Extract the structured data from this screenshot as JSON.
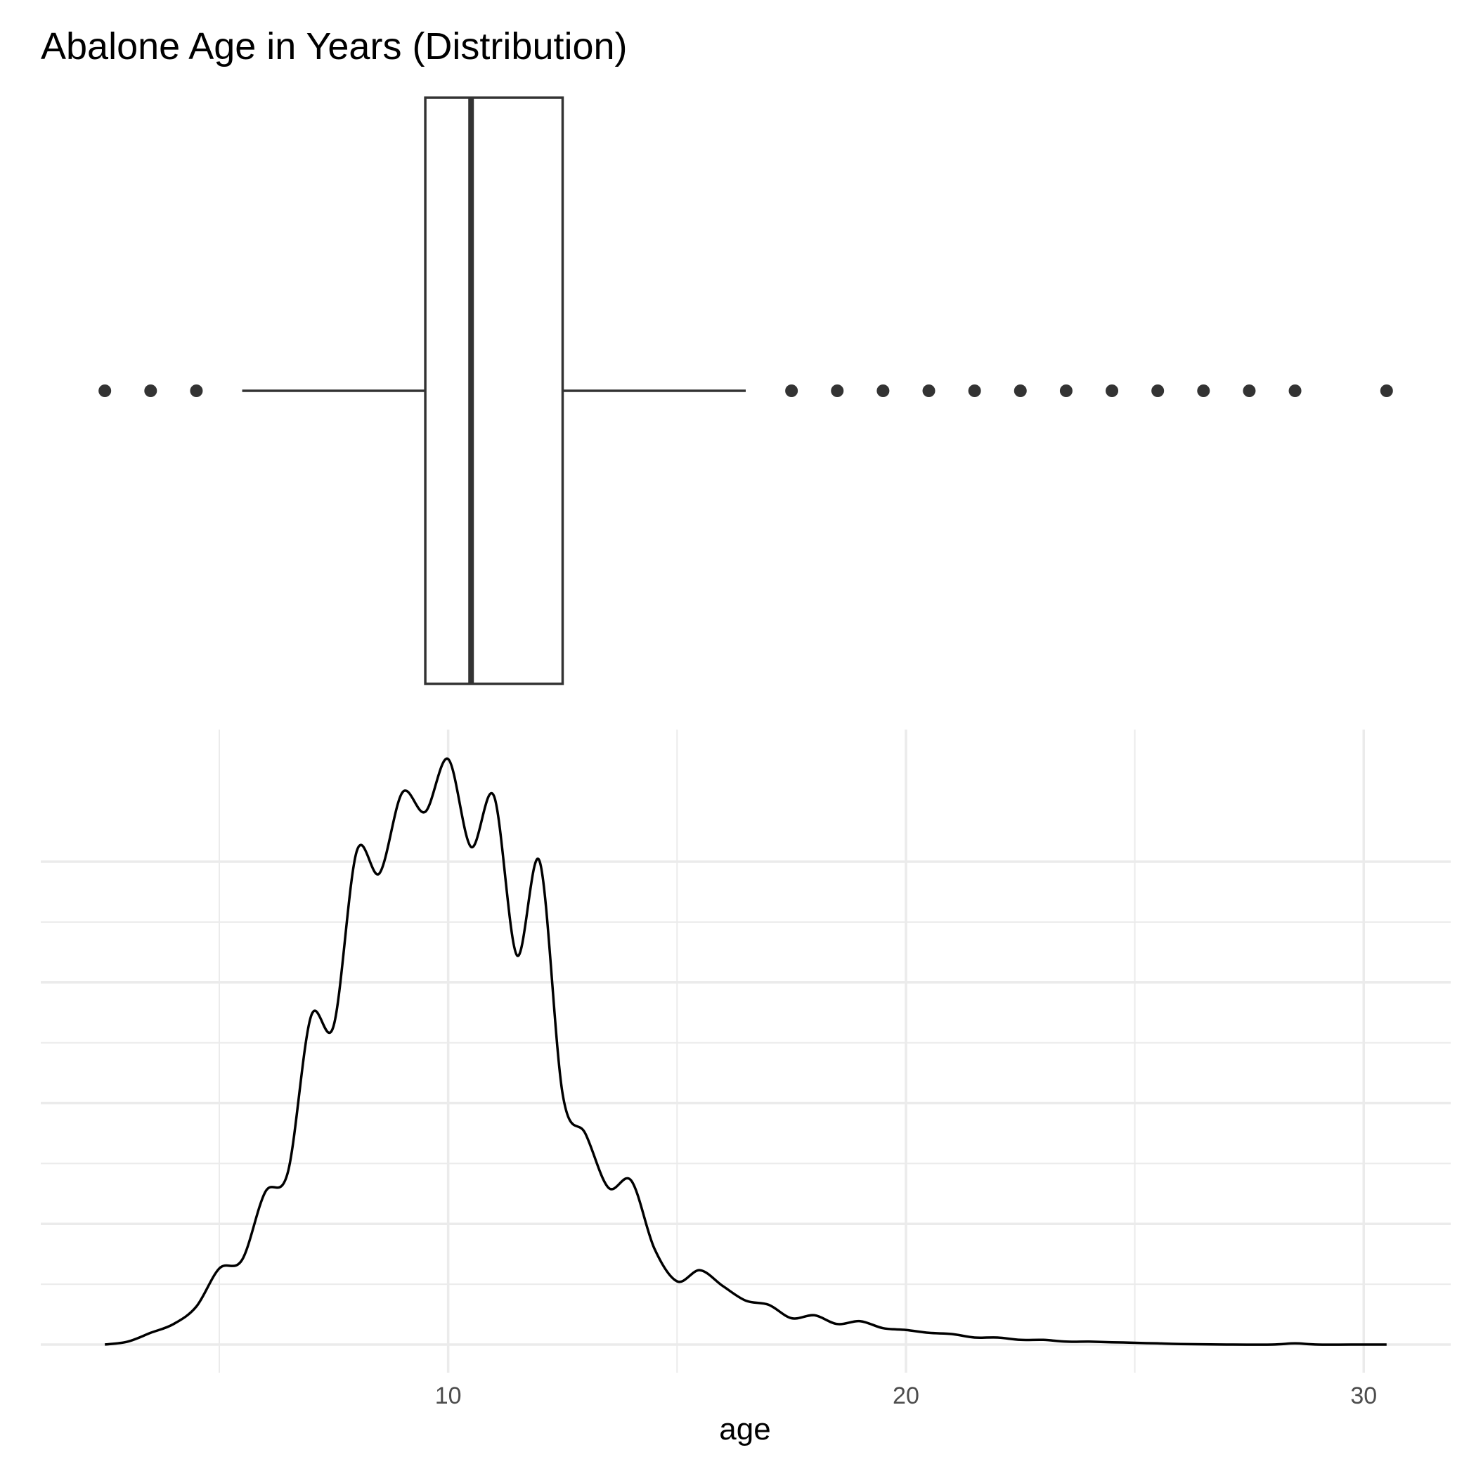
{
  "chart_data": [
    {
      "type": "boxplot",
      "title": "Abalone Age in Years (Distribution)",
      "orientation": "horizontal",
      "min_whisker": 5.5,
      "q1": 9.5,
      "median": 10.5,
      "q3": 12.5,
      "max_whisker": 16.5,
      "outliers": [
        2.5,
        3.5,
        4.5,
        17.5,
        18.5,
        19.5,
        20.5,
        21.5,
        22.5,
        23.5,
        24.5,
        25.5,
        26.5,
        27.5,
        28.5,
        30.5
      ],
      "xlim": [
        1.1,
        31.9
      ],
      "colors": {
        "line": "#333333",
        "fill": "#ffffff"
      }
    },
    {
      "type": "line",
      "xlabel": "age",
      "ylabel": "",
      "x_ticks": [
        10,
        20,
        30
      ],
      "xlim": [
        1.1,
        31.9
      ],
      "ylim": [
        0,
        1
      ],
      "grid": true,
      "x": [
        2.5,
        3.0,
        3.5,
        4.0,
        4.5,
        5.0,
        5.5,
        6.0,
        6.5,
        7.0,
        7.5,
        8.0,
        8.5,
        9.0,
        9.5,
        10.0,
        10.5,
        11.0,
        11.5,
        12.0,
        12.5,
        13.0,
        13.5,
        14.0,
        14.5,
        15.0,
        15.5,
        16.0,
        16.5,
        17.0,
        17.5,
        18.0,
        18.5,
        19.0,
        19.5,
        20.0,
        20.5,
        21.0,
        21.5,
        22.0,
        22.5,
        23.0,
        23.5,
        24.0,
        24.5,
        25.0,
        25.5,
        26.0,
        27.0,
        28.0,
        28.5,
        29.0,
        30.0,
        30.5
      ],
      "values": [
        0.0,
        0.005,
        0.02,
        0.035,
        0.065,
        0.13,
        0.145,
        0.26,
        0.295,
        0.56,
        0.545,
        0.842,
        0.805,
        0.943,
        0.91,
        1.0,
        0.85,
        0.937,
        0.665,
        0.825,
        0.428,
        0.36,
        0.268,
        0.28,
        0.165,
        0.108,
        0.127,
        0.1,
        0.075,
        0.068,
        0.045,
        0.05,
        0.035,
        0.04,
        0.028,
        0.025,
        0.02,
        0.018,
        0.012,
        0.012,
        0.008,
        0.008,
        0.005,
        0.005,
        0.004,
        0.003,
        0.002,
        0.001,
        0.0,
        0.0,
        0.002,
        0.0,
        0.0,
        0.0
      ],
      "colors": {
        "line": "#000000",
        "grid": "#ebebeb"
      }
    }
  ]
}
